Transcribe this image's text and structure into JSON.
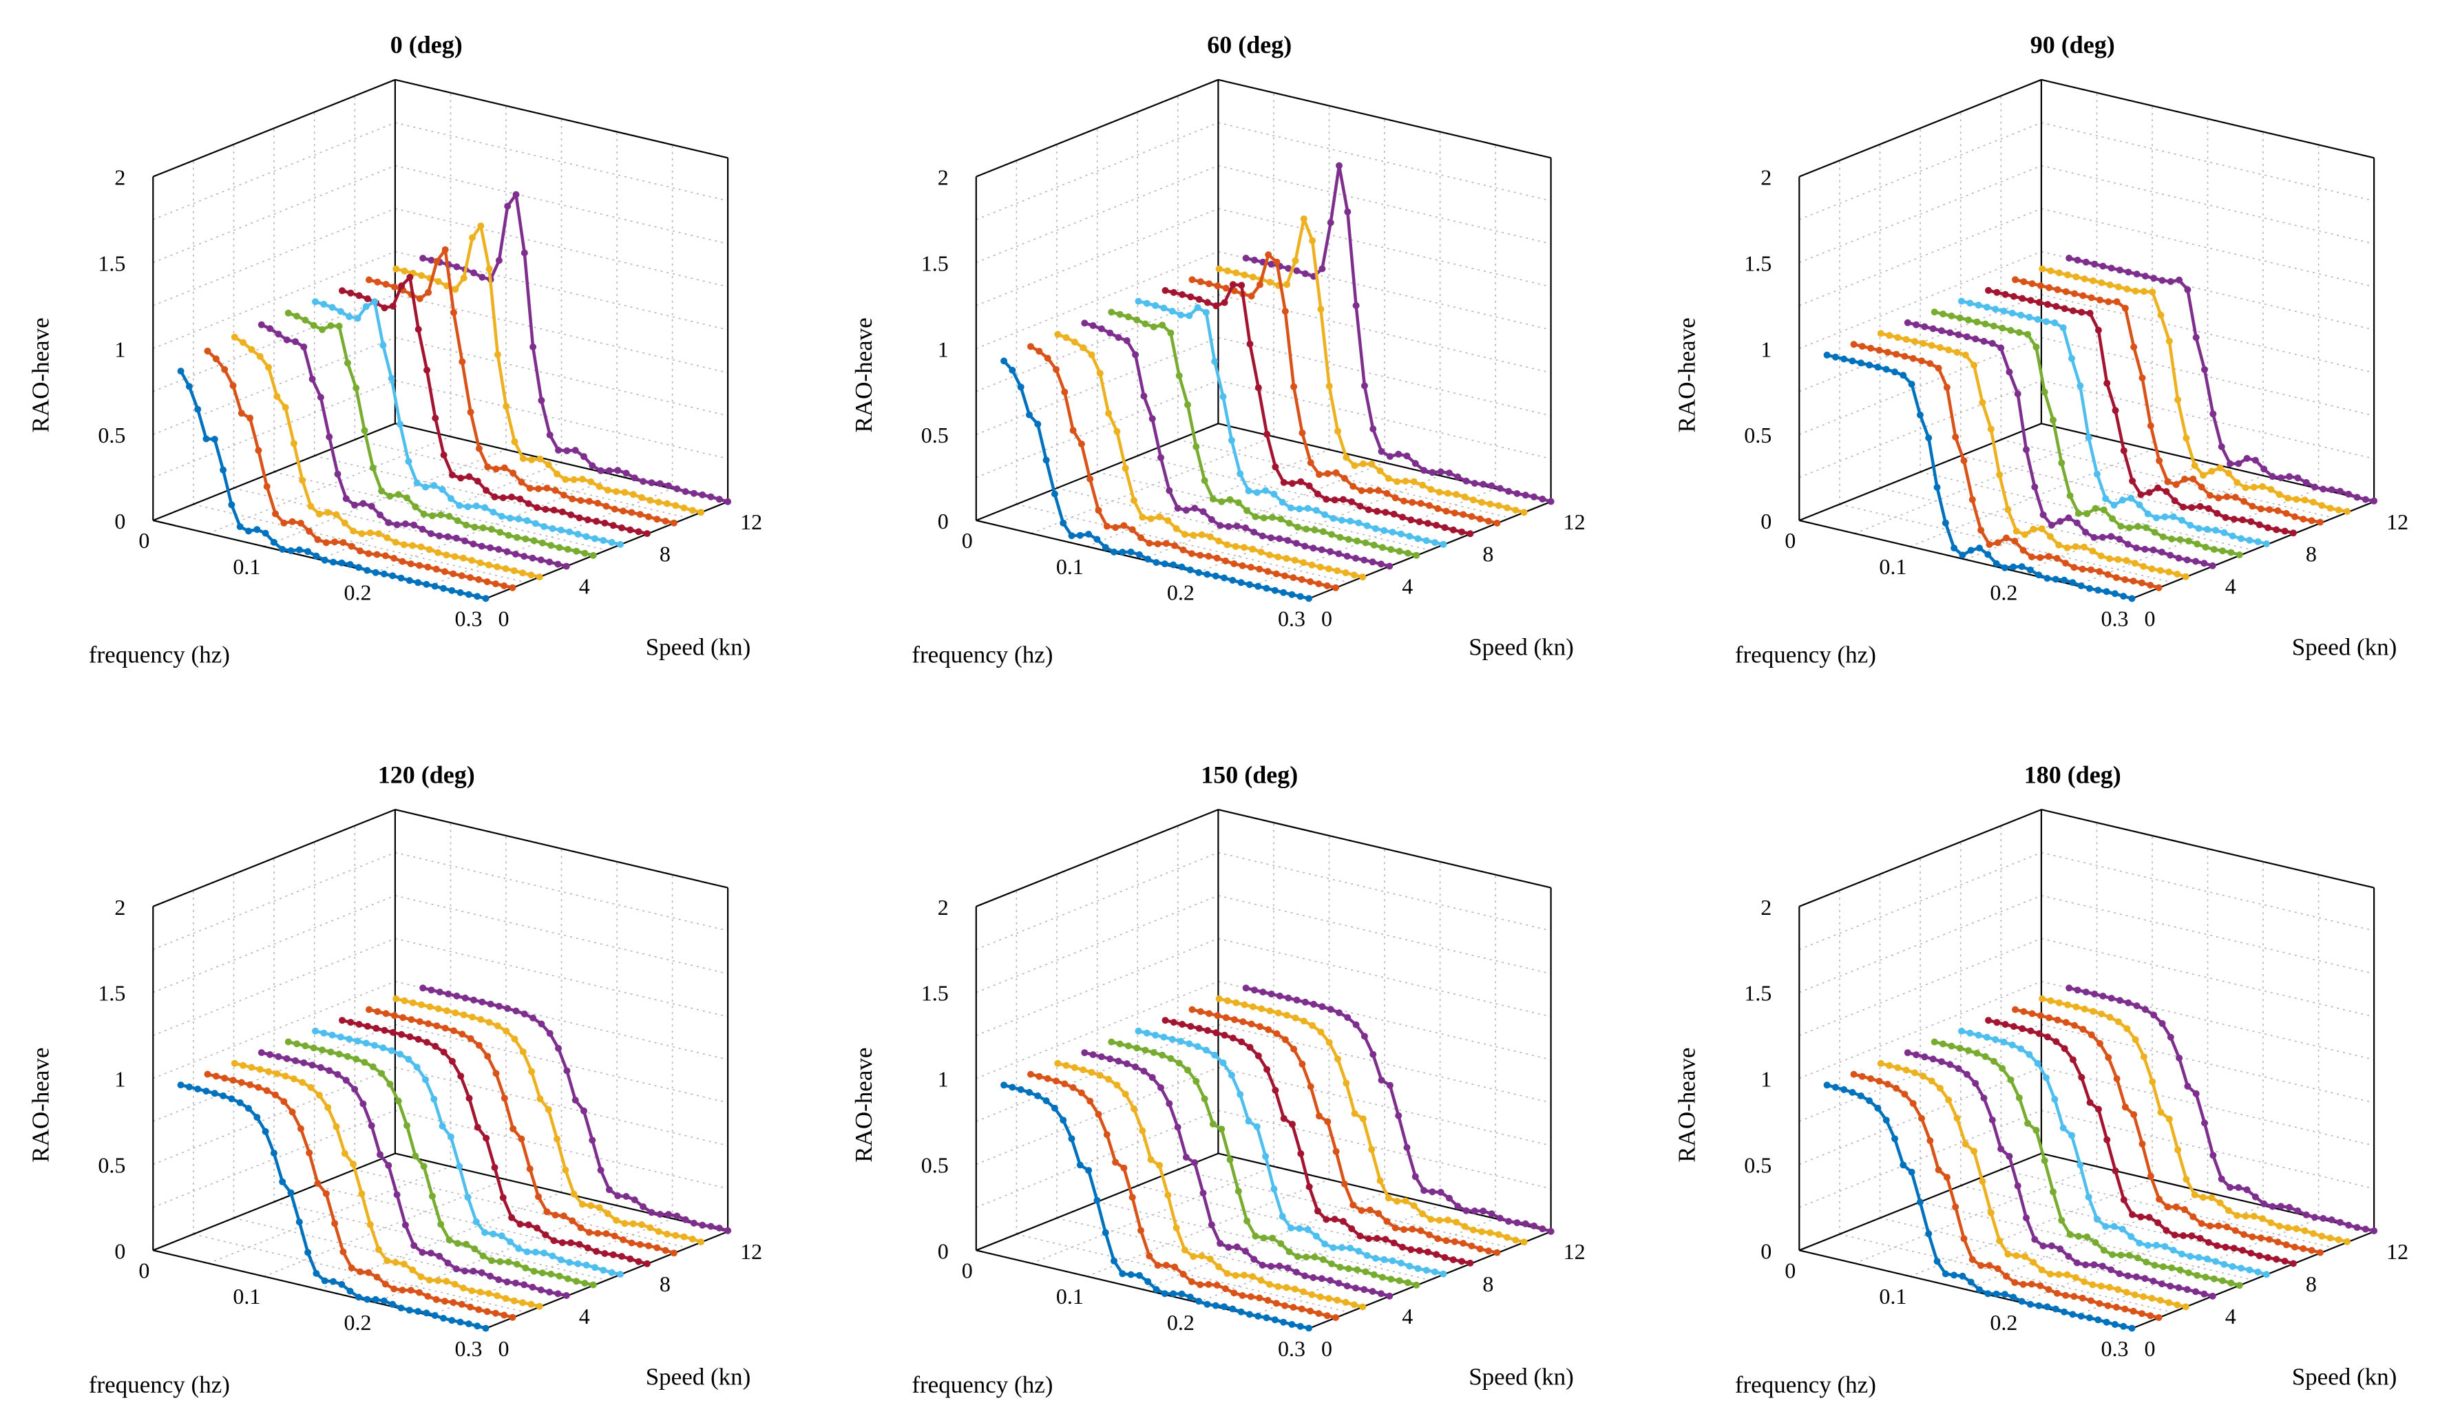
{
  "chart_data": [
    {
      "type": "line",
      "title": "0 (deg)",
      "xlabel": "frequency (hz)",
      "ylabel": "Speed (kn)",
      "zlabel": "RAO-heave",
      "x_ticks": [
        "0",
        "0.1",
        "0.2",
        "0.3"
      ],
      "y_ticks": [
        "0",
        "4",
        "8",
        "12"
      ],
      "z_ticks": [
        "0",
        "0.5",
        "1",
        "1.5",
        "2"
      ],
      "xlim": [
        0,
        0.3
      ],
      "ylim": [
        0,
        12
      ],
      "zlim": [
        0,
        2
      ],
      "grid": true,
      "speeds": [
        0,
        1.33,
        2.67,
        4,
        5.33,
        6.67,
        8,
        9.33,
        10.67,
        12
      ],
      "peak_rao": [
        0,
        0.05,
        0.12,
        0.2,
        0.28,
        0.38,
        0.48,
        0.6,
        0.7,
        0.85
      ],
      "cutoff_frequency": [
        0.05,
        0.06,
        0.067,
        0.074,
        0.081,
        0.088,
        0.095,
        0.102,
        0.109,
        0.116
      ],
      "transition_width": 0.011,
      "tail_rao": 0.18
    },
    {
      "type": "line",
      "title": "60 (deg)",
      "xlabel": "frequency (hz)",
      "ylabel": "Speed (kn)",
      "zlabel": "RAO-heave",
      "x_ticks": [
        "0",
        "0.1",
        "0.2",
        "0.3"
      ],
      "y_ticks": [
        "0",
        "4",
        "8",
        "12"
      ],
      "z_ticks": [
        "0",
        "0.5",
        "1",
        "1.5",
        "2"
      ],
      "xlim": [
        0,
        0.3
      ],
      "ylim": [
        0,
        12
      ],
      "zlim": [
        0,
        2
      ],
      "grid": true,
      "speeds": [
        0,
        1.33,
        2.67,
        4,
        5.33,
        6.67,
        8,
        9.33,
        10.67,
        12
      ],
      "peak_rao": [
        0,
        0.05,
        0.1,
        0.15,
        0.22,
        0.3,
        0.42,
        0.55,
        0.7,
        0.95
      ],
      "cutoff_frequency": [
        0.055,
        0.064,
        0.072,
        0.08,
        0.088,
        0.095,
        0.102,
        0.108,
        0.114,
        0.12
      ],
      "transition_width": 0.009,
      "tail_rao": 0.16
    },
    {
      "type": "line",
      "title": "90 (deg)",
      "xlabel": "frequency (hz)",
      "ylabel": "Speed (kn)",
      "zlabel": "RAO-heave",
      "x_ticks": [
        "0",
        "0.1",
        "0.2",
        "0.3"
      ],
      "y_ticks": [
        "0",
        "4",
        "8",
        "12"
      ],
      "z_ticks": [
        "0",
        "0.5",
        "1",
        "1.5",
        "2"
      ],
      "xlim": [
        0,
        0.3
      ],
      "ylim": [
        0,
        12
      ],
      "zlim": [
        0,
        2
      ],
      "grid": true,
      "speeds": [
        0,
        1.33,
        2.67,
        4,
        5.33,
        6.67,
        8,
        9.33,
        10.67,
        12
      ],
      "peak_rao": [
        0.05,
        0.06,
        0.07,
        0.08,
        0.09,
        0.1,
        0.11,
        0.12,
        0.13,
        0.14
      ],
      "cutoff_frequency": [
        0.115,
        0.118,
        0.121,
        0.124,
        0.127,
        0.13,
        0.133,
        0.136,
        0.139,
        0.142
      ],
      "transition_width": 0.006,
      "tail_rao": 0.2
    },
    {
      "type": "line",
      "title": "120 (deg)",
      "xlabel": "frequency (hz)",
      "ylabel": "Speed (kn)",
      "zlabel": "RAO-heave",
      "x_ticks": [
        "0",
        "0.1",
        "0.2",
        "0.3"
      ],
      "y_ticks": [
        "0",
        "4",
        "8",
        "12"
      ],
      "z_ticks": [
        "0",
        "0.5",
        "1",
        "1.5",
        "2"
      ],
      "xlim": [
        0,
        0.3
      ],
      "ylim": [
        0,
        12
      ],
      "zlim": [
        0,
        2
      ],
      "grid": true,
      "speeds": [
        0,
        1.33,
        2.67,
        4,
        5.33,
        6.67,
        8,
        9.33,
        10.67,
        12
      ],
      "peak_rao": [
        0,
        0,
        0,
        0,
        0,
        0,
        0,
        0,
        0,
        0
      ],
      "cutoff_frequency": [
        0.12,
        0.125,
        0.13,
        0.135,
        0.14,
        0.145,
        0.15,
        0.155,
        0.16,
        0.165
      ],
      "transition_width": 0.011,
      "tail_rao": 0.12
    },
    {
      "type": "line",
      "title": "150 (deg)",
      "xlabel": "frequency (hz)",
      "ylabel": "Speed (kn)",
      "zlabel": "RAO-heave",
      "x_ticks": [
        "0",
        "0.1",
        "0.2",
        "0.3"
      ],
      "y_ticks": [
        "0",
        "4",
        "8",
        "12"
      ],
      "z_ticks": [
        "0",
        "0.5",
        "1",
        "1.5",
        "2"
      ],
      "xlim": [
        0,
        0.3
      ],
      "ylim": [
        0,
        12
      ],
      "zlim": [
        0,
        2
      ],
      "grid": true,
      "speeds": [
        0,
        1.33,
        2.67,
        4,
        5.33,
        6.67,
        8,
        9.33,
        10.67,
        12
      ],
      "peak_rao": [
        0,
        0,
        0,
        0,
        0,
        0,
        0,
        0,
        0,
        0
      ],
      "cutoff_frequency": [
        0.1,
        0.106,
        0.112,
        0.118,
        0.124,
        0.13,
        0.136,
        0.142,
        0.148,
        0.154
      ],
      "transition_width": 0.011,
      "tail_rao": 0.15
    },
    {
      "type": "line",
      "title": "180 (deg)",
      "xlabel": "frequency (hz)",
      "ylabel": "Speed (kn)",
      "zlabel": "RAO-heave",
      "x_ticks": [
        "0",
        "0.1",
        "0.2",
        "0.3"
      ],
      "y_ticks": [
        "0",
        "4",
        "8",
        "12"
      ],
      "z_ticks": [
        "0",
        "0.5",
        "1",
        "1.5",
        "2"
      ],
      "xlim": [
        0,
        0.3
      ],
      "ylim": [
        0,
        12
      ],
      "zlim": [
        0,
        2
      ],
      "grid": true,
      "speeds": [
        0,
        1.33,
        2.67,
        4,
        5.33,
        6.67,
        8,
        9.33,
        10.67,
        12
      ],
      "peak_rao": [
        0,
        0,
        0,
        0,
        0,
        0,
        0,
        0,
        0,
        0
      ],
      "cutoff_frequency": [
        0.1,
        0.104,
        0.108,
        0.112,
        0.116,
        0.12,
        0.124,
        0.128,
        0.132,
        0.136
      ],
      "transition_width": 0.011,
      "tail_rao": 0.14
    }
  ],
  "series_colors": [
    "#0072BD",
    "#D95319",
    "#EDB120",
    "#7E2F8E",
    "#77AC30",
    "#4DBEEE",
    "#A2142F",
    "#D95319",
    "#EDB120",
    "#7E2F8E",
    "#77AC30"
  ]
}
